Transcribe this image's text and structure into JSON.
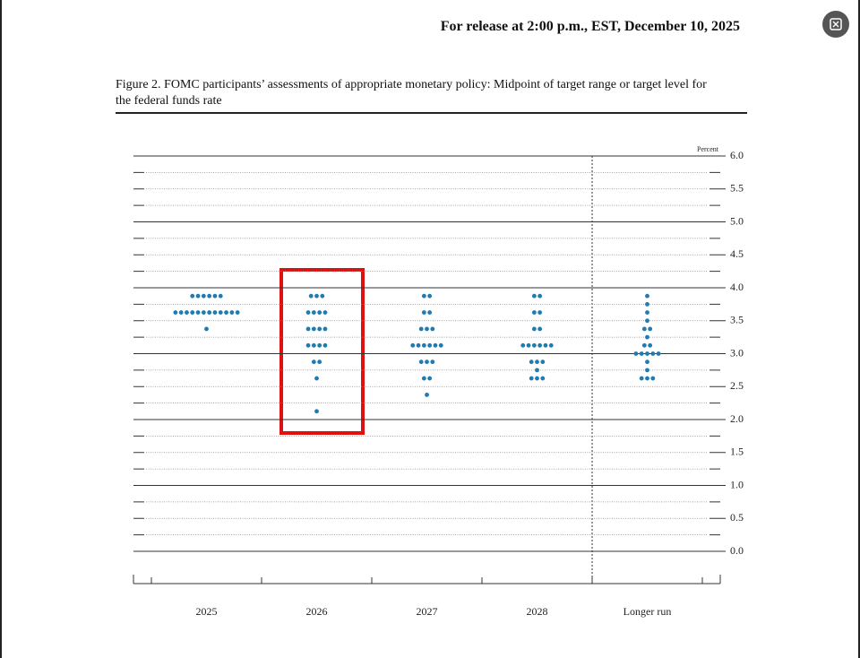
{
  "release_note": "For release at 2:00 p.m., EST, December 10, 2025",
  "chart_data": {
    "type": "dotplot",
    "title": "Figure 2. FOMC participants’ assessments of appropriate monetary policy: Midpoint of target range or target level for the federal funds rate",
    "y_unit_label": "Percent",
    "color": "#1f7bb0",
    "categories": [
      "2025",
      "2026",
      "2027",
      "2028",
      "Longer run"
    ],
    "dots": [
      [
        {
          "rate": 3.875,
          "count": 6
        },
        {
          "rate": 3.625,
          "count": 12
        },
        {
          "rate": 3.375,
          "count": 1
        }
      ],
      [
        {
          "rate": 3.875,
          "count": 3
        },
        {
          "rate": 3.625,
          "count": 4
        },
        {
          "rate": 3.375,
          "count": 4
        },
        {
          "rate": 3.125,
          "count": 4
        },
        {
          "rate": 2.875,
          "count": 2
        },
        {
          "rate": 2.625,
          "count": 1
        },
        {
          "rate": 2.125,
          "count": 1
        }
      ],
      [
        {
          "rate": 3.875,
          "count": 2
        },
        {
          "rate": 3.625,
          "count": 2
        },
        {
          "rate": 3.375,
          "count": 3
        },
        {
          "rate": 3.125,
          "count": 6
        },
        {
          "rate": 2.875,
          "count": 3
        },
        {
          "rate": 2.625,
          "count": 2
        },
        {
          "rate": 2.375,
          "count": 1
        }
      ],
      [
        {
          "rate": 3.875,
          "count": 2
        },
        {
          "rate": 3.625,
          "count": 2
        },
        {
          "rate": 3.375,
          "count": 2
        },
        {
          "rate": 3.125,
          "count": 6
        },
        {
          "rate": 2.875,
          "count": 3
        },
        {
          "rate": 2.75,
          "count": 1
        },
        {
          "rate": 2.625,
          "count": 3
        }
      ],
      [
        {
          "rate": 3.875,
          "count": 1
        },
        {
          "rate": 3.75,
          "count": 1
        },
        {
          "rate": 3.625,
          "count": 1
        },
        {
          "rate": 3.5,
          "count": 1
        },
        {
          "rate": 3.375,
          "count": 2
        },
        {
          "rate": 3.25,
          "count": 1
        },
        {
          "rate": 3.125,
          "count": 2
        },
        {
          "rate": 3.0,
          "count": 5
        },
        {
          "rate": 2.875,
          "count": 1
        },
        {
          "rate": 2.75,
          "count": 1
        },
        {
          "rate": 2.625,
          "count": 3
        }
      ]
    ],
    "ylim": [
      0,
      6
    ],
    "yticks": [
      {
        "value": 0,
        "label": "0.0"
      },
      {
        "value": 0.5,
        "label": "0.5"
      },
      {
        "value": 1,
        "label": "1.0"
      },
      {
        "value": 1.5,
        "label": "1.5"
      },
      {
        "value": 2,
        "label": "2.0"
      },
      {
        "value": 2.5,
        "label": "2.5"
      },
      {
        "value": 3,
        "label": "3.0"
      },
      {
        "value": 3.5,
        "label": "3.5"
      },
      {
        "value": 4,
        "label": "4.0"
      },
      {
        "value": 4.5,
        "label": "4.5"
      },
      {
        "value": 5,
        "label": "5.0"
      },
      {
        "value": 5.5,
        "label": "5.5"
      },
      {
        "value": 6,
        "label": "6.0"
      }
    ],
    "grid": true
  }
}
